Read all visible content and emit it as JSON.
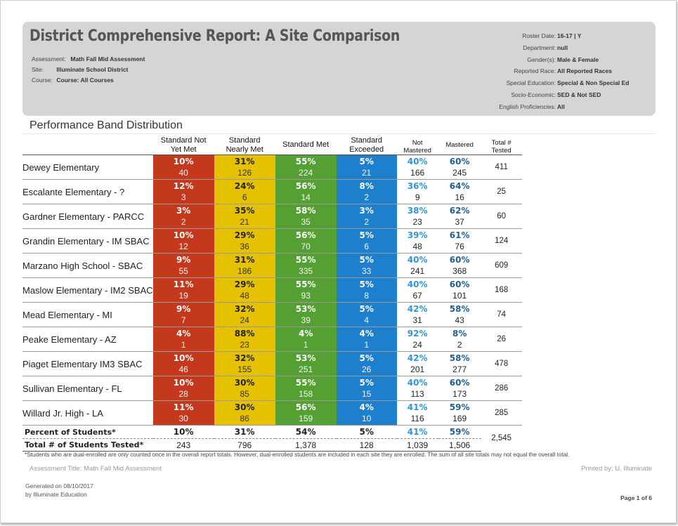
{
  "header": {
    "title": "District Comprehensive Report: A Site Comparison",
    "left": [
      {
        "label": "Assessment:",
        "value": "Math Fall Mid Assessment"
      },
      {
        "label": "Site:",
        "value": "Illuminate School District"
      },
      {
        "label": "Course:",
        "value": "Course: All Courses"
      }
    ],
    "right": [
      {
        "label": "Roster Date:",
        "value": "16-17 | Y"
      },
      {
        "label": "Department:",
        "value": "null"
      },
      {
        "label": "Gender(s):",
        "value": "Male & Female"
      },
      {
        "label": "Reported Race:",
        "value": "All Reported Races"
      },
      {
        "label": "Special Education:",
        "value": "Special & Non Special Ed"
      },
      {
        "label": "Socio-Economic:",
        "value": "SED & Not SED"
      },
      {
        "label": "English Proficiencies:",
        "value": "All"
      }
    ]
  },
  "section_title": "Performance Band Distribution",
  "columns": {
    "band1": [
      "Standard Not",
      "Yet Met"
    ],
    "band2": [
      "Standard",
      "Nearly Met"
    ],
    "band3": [
      "Standard Met"
    ],
    "band4": [
      "Standard",
      "Exceeded"
    ],
    "not_mastered": [
      "Not",
      "Mastered"
    ],
    "mastered": [
      "Mastered"
    ],
    "total": [
      "Total #",
      "Tested"
    ]
  },
  "colors": {
    "band1": "#c4391d",
    "band2": "#e5c100",
    "band3": "#55a033",
    "band4": "#1e7fcc",
    "not_mastered": "#2f95db",
    "mastered": "#1f5f93"
  },
  "rows": [
    {
      "name": "Dewey Elementary",
      "bands": [
        [
          "10%",
          "40"
        ],
        [
          "31%",
          "126"
        ],
        [
          "55%",
          "224"
        ],
        [
          "5%",
          "21"
        ]
      ],
      "nm": [
        "40%",
        "166"
      ],
      "m": [
        "60%",
        "245"
      ],
      "total": "411"
    },
    {
      "name": "Escalante Elementary - ?",
      "bands": [
        [
          "12%",
          "3"
        ],
        [
          "24%",
          "6"
        ],
        [
          "56%",
          "14"
        ],
        [
          "8%",
          "2"
        ]
      ],
      "nm": [
        "36%",
        "9"
      ],
      "m": [
        "64%",
        "16"
      ],
      "total": "25"
    },
    {
      "name": "Gardner Elementary - PARCC",
      "bands": [
        [
          "3%",
          "2"
        ],
        [
          "35%",
          "21"
        ],
        [
          "58%",
          "35"
        ],
        [
          "3%",
          "2"
        ]
      ],
      "nm": [
        "38%",
        "23"
      ],
      "m": [
        "62%",
        "37"
      ],
      "total": "60"
    },
    {
      "name": "Grandin Elementary - IM SBAC",
      "bands": [
        [
          "10%",
          "12"
        ],
        [
          "29%",
          "36"
        ],
        [
          "56%",
          "70"
        ],
        [
          "5%",
          "6"
        ]
      ],
      "nm": [
        "39%",
        "48"
      ],
      "m": [
        "61%",
        "76"
      ],
      "total": "124"
    },
    {
      "name": "Marzano High School - SBAC",
      "bands": [
        [
          "9%",
          "55"
        ],
        [
          "31%",
          "186"
        ],
        [
          "55%",
          "335"
        ],
        [
          "5%",
          "33"
        ]
      ],
      "nm": [
        "40%",
        "241"
      ],
      "m": [
        "60%",
        "368"
      ],
      "total": "609"
    },
    {
      "name": "Maslow Elementary - IM2 SBAC",
      "bands": [
        [
          "11%",
          "19"
        ],
        [
          "29%",
          "48"
        ],
        [
          "55%",
          "93"
        ],
        [
          "5%",
          "8"
        ]
      ],
      "nm": [
        "40%",
        "67"
      ],
      "m": [
        "60%",
        "101"
      ],
      "total": "168"
    },
    {
      "name": "Mead Elementary - MI",
      "bands": [
        [
          "9%",
          "7"
        ],
        [
          "32%",
          "24"
        ],
        [
          "53%",
          "39"
        ],
        [
          "5%",
          "4"
        ]
      ],
      "nm": [
        "42%",
        "31"
      ],
      "m": [
        "58%",
        "43"
      ],
      "total": "74"
    },
    {
      "name": "Peake Elementary - AZ",
      "bands": [
        [
          "4%",
          "1"
        ],
        [
          "88%",
          "23"
        ],
        [
          "4%",
          "1"
        ],
        [
          "4%",
          "1"
        ]
      ],
      "nm": [
        "92%",
        "24"
      ],
      "m": [
        "8%",
        "2"
      ],
      "total": "26"
    },
    {
      "name": "Piaget Elementary IM3 SBAC",
      "bands": [
        [
          "10%",
          "46"
        ],
        [
          "32%",
          "155"
        ],
        [
          "53%",
          "251"
        ],
        [
          "5%",
          "26"
        ]
      ],
      "nm": [
        "42%",
        "201"
      ],
      "m": [
        "58%",
        "277"
      ],
      "total": "478"
    },
    {
      "name": "Sullivan Elementary - FL",
      "bands": [
        [
          "10%",
          "28"
        ],
        [
          "30%",
          "85"
        ],
        [
          "55%",
          "158"
        ],
        [
          "5%",
          "15"
        ]
      ],
      "nm": [
        "40%",
        "113"
      ],
      "m": [
        "60%",
        "173"
      ],
      "total": "286"
    },
    {
      "name": "Willard Jr. High - LA",
      "bands": [
        [
          "11%",
          "30"
        ],
        [
          "30%",
          "86"
        ],
        [
          "56%",
          "159"
        ],
        [
          "4%",
          "10"
        ]
      ],
      "nm": [
        "41%",
        "116"
      ],
      "m": [
        "59%",
        "169"
      ],
      "total": "285"
    }
  ],
  "summary": {
    "percent_label": "Percent of Students*",
    "percents": [
      "10%",
      "31%",
      "54%",
      "5%",
      "41%",
      "59%"
    ],
    "count_label": "Total # of Students Tested*",
    "counts": [
      "243",
      "796",
      "1,378",
      "128",
      "1,039",
      "1,506"
    ],
    "grand_total": "2,545"
  },
  "footnote": "*Students who are dual-enrolled are only counted once in the overall report totals. However, dual-enrolled students are included in each site they are enrolled. The sum of all site totals may not equal the overall total.",
  "footer": {
    "assessment_title": "Assessment Title: Math Fall Mid Assessment",
    "printed_by": "Printed by: U. Illuminate",
    "generated_on": "Generated on 08/10/2017",
    "generated_by": "by Illuminate Education",
    "page": "Page 1 of 6"
  }
}
